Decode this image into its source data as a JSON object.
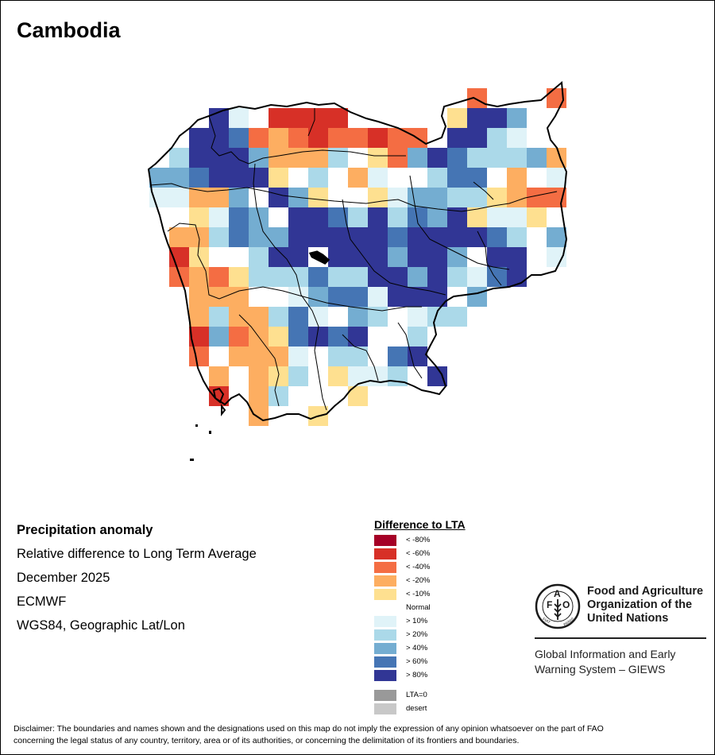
{
  "map": {
    "title": "Cambodia",
    "colors": {
      "lt_-80": "#a50026",
      "lt_-60": "#d73027",
      "lt_-40": "#f46d43",
      "lt_-20": "#fdae61",
      "lt_-10": "#fee090",
      "normal": "#ffffff",
      "gt_10": "#e0f3f8",
      "gt_20": "#abd9e9",
      "gt_40": "#74add1",
      "gt_60": "#4575b4",
      "gt_80": "#313695",
      "lta0": "#999999",
      "desert": "#c8c8c8"
    },
    "grid_codes": {
      "A": "lt_-60",
      "O": "lt_-40",
      "o": "lt_-20",
      "y": "lt_-10",
      "N": "normal",
      "1": "gt_10",
      "2": "gt_20",
      "4": "gt_40",
      "6": "gt_60",
      "8": "gt_80",
      ".": "none"
    },
    "anomaly_grid": [
      "................O...O",
      "...81NAAAA.....y884..",
      "..886OoOAOOAOON8821N.",
      ".28884ooo2NyO4862224o",
      "446888yN2No1NN266NoN1",
      "11oo4N84yNNy14422yoOO",
      "NNy164N886282648y11yN",
      ".oo2644888886888862N4",
      ".AyNN288N8884884N88N1",
      ".OoOy22262288482168",
      "..oooNN14661888N4",
      "..o2oo261N42N122",
      "..A4Ooy6868NN2",
      "..ONooo1N22N68",
      "...oNoy2Ny112N8",
      "...ANo2NNNy",
      ".....o..y"
    ]
  },
  "info": {
    "heading": "Precipitation anomaly",
    "line1": "Relative difference to Long Term Average",
    "line2": "December 2025",
    "line3": "ECMWF",
    "line4": "WGS84, Geographic Lat/Lon"
  },
  "legend": {
    "title": "Difference to LTA",
    "items": [
      {
        "label": "< -80%",
        "key": "lt_-80"
      },
      {
        "label": "< -60%",
        "key": "lt_-60"
      },
      {
        "label": "< -40%",
        "key": "lt_-40"
      },
      {
        "label": "< -20%",
        "key": "lt_-20"
      },
      {
        "label": "< -10%",
        "key": "lt_-10"
      },
      {
        "label": "Normal",
        "key": "normal"
      },
      {
        "label": "> 10%",
        "key": "gt_10"
      },
      {
        "label": "> 20%",
        "key": "gt_20"
      },
      {
        "label": "> 40%",
        "key": "gt_40"
      },
      {
        "label": "> 60%",
        "key": "gt_60"
      },
      {
        "label": "> 80%",
        "key": "gt_80"
      }
    ],
    "extra": [
      {
        "label": "LTA=0",
        "key": "lta0"
      },
      {
        "label": "desert",
        "key": "desert"
      }
    ]
  },
  "logo": {
    "org_line1": "Food and Agriculture",
    "org_line2": "Organization of the",
    "org_line3": "United Nations",
    "system_line1": "Global Information and Early",
    "system_line2": "Warning System – GIEWS",
    "emblem_letters": "FAO",
    "emblem_motto": "FIAT PANIS"
  },
  "disclaimer": {
    "line1": "Disclaimer: The boundaries and names shown and the designations used on this map do not imply the expression of any opinion whatsoever on the part of FAO",
    "line2": "concerning the legal status of any country, territory, area or of its authorities, or concerning the delimitation of its frontiers and boundaries."
  }
}
